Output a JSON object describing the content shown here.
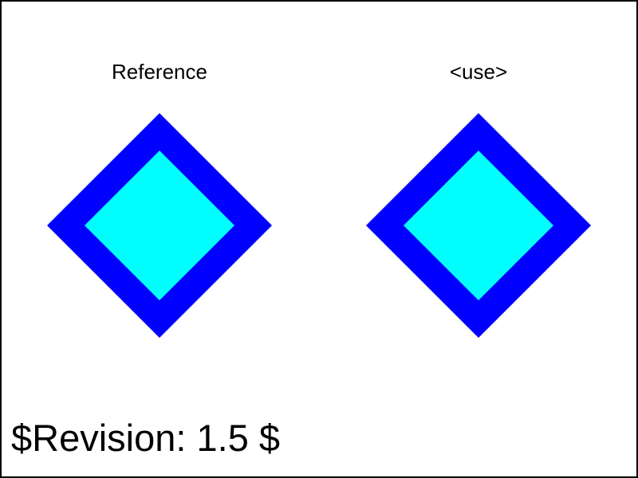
{
  "labels": {
    "reference": "Reference",
    "use": "<use>"
  },
  "footer": {
    "revision": "$Revision: 1.5 $"
  },
  "colors": {
    "outer": "#0000ff",
    "inner": "#00ffff",
    "border": "#000000",
    "background": "#ffffff"
  }
}
